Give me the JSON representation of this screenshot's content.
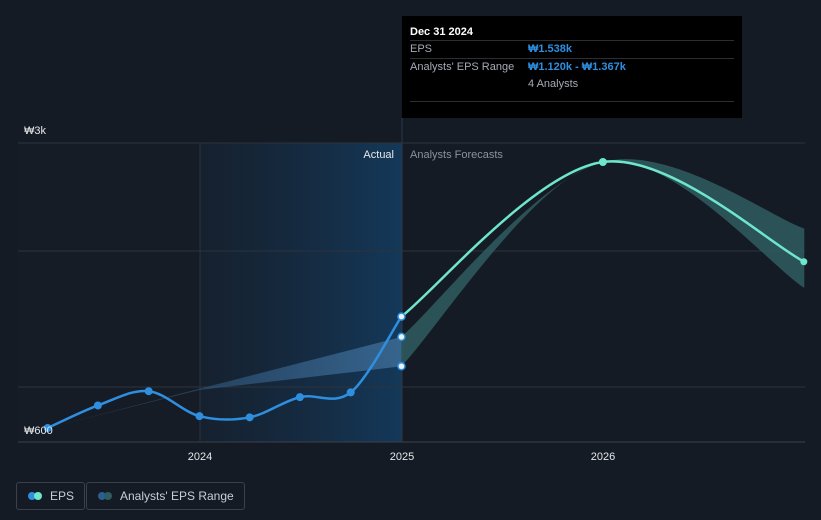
{
  "chart_data": {
    "type": "line",
    "currency_symbol": "₩",
    "y_axis": {
      "top_label": "₩3k",
      "bottom_label": "₩600",
      "ylim": [
        600,
        3000
      ]
    },
    "x_ticks": [
      "2024",
      "2025",
      "2026"
    ],
    "grid": "horizontal",
    "regions": {
      "actual_label": "Actual",
      "forecast_label": "Analysts Forecasts"
    },
    "series": [
      {
        "name": "EPS",
        "kind": "actual",
        "points": [
          {
            "date": "2023-03-31",
            "value": 600
          },
          {
            "date": "2023-06-30",
            "value": 790
          },
          {
            "date": "2023-09-30",
            "value": 910
          },
          {
            "date": "2023-12-31",
            "value": 700
          },
          {
            "date": "2024-03-31",
            "value": 690
          },
          {
            "date": "2024-06-30",
            "value": 860
          },
          {
            "date": "2024-09-30",
            "value": 900
          },
          {
            "date": "2024-12-31",
            "value": 1538
          }
        ]
      },
      {
        "name": "EPS",
        "kind": "forecast",
        "points": [
          {
            "date": "2024-12-31",
            "value": 1538
          },
          {
            "date": "2025-12-31",
            "value": 2840
          },
          {
            "date": "2026-12-31",
            "value": 2000
          }
        ]
      },
      {
        "name": "Analysts' EPS Range",
        "kind": "range",
        "points": [
          {
            "date": "2023-03-31",
            "low": 600,
            "high": 600
          },
          {
            "date": "2023-12-31",
            "low": 920,
            "high": 930
          },
          {
            "date": "2024-12-31",
            "low": 1120,
            "high": 1367
          },
          {
            "date": "2025-12-31",
            "low": 2840,
            "high": 2840
          },
          {
            "date": "2026-12-31",
            "low": 1780,
            "high": 2280
          }
        ]
      }
    ],
    "range_markers": [
      {
        "date": "2024-12-31",
        "value": 1120
      },
      {
        "date": "2024-12-31",
        "value": 1367
      }
    ]
  },
  "tooltip": {
    "date": "Dec 31 2024",
    "eps_label": "EPS",
    "eps_value": "₩1.538k",
    "range_label": "Analysts' EPS Range",
    "range_value": "₩1.120k - ₩1.367k",
    "analysts": "4 Analysts"
  },
  "legend": {
    "eps_label": "EPS",
    "range_label": "Analysts' EPS Range"
  },
  "colors": {
    "background": "#151b24",
    "actual_line": "#2e8fe0",
    "forecast_line": "#6ee6cc",
    "range_fill": "#2f5c60",
    "grid": "#2c333d",
    "actual_shade": "#16324e"
  }
}
